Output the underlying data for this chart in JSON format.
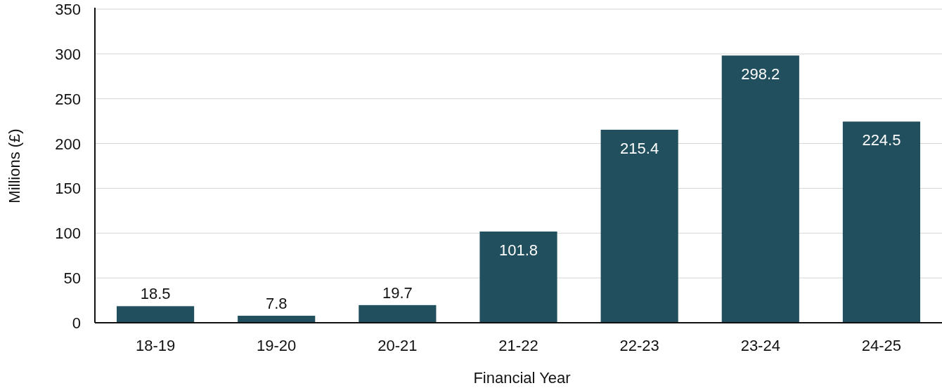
{
  "chart_data": {
    "type": "bar",
    "xlabel": "Financial Year",
    "ylabel": "Millions (£)",
    "categories": [
      "18-19",
      "19-20",
      "20-21",
      "21-22",
      "22-23",
      "23-24",
      "24-25"
    ],
    "values": [
      18.5,
      7.8,
      19.7,
      101.8,
      215.4,
      298.2,
      224.5
    ],
    "color": "#224f5e",
    "ylim": [
      0,
      350
    ],
    "yticks": [
      0,
      50,
      100,
      150,
      200,
      250,
      300,
      350
    ],
    "grid": "y",
    "data_labels": true
  }
}
